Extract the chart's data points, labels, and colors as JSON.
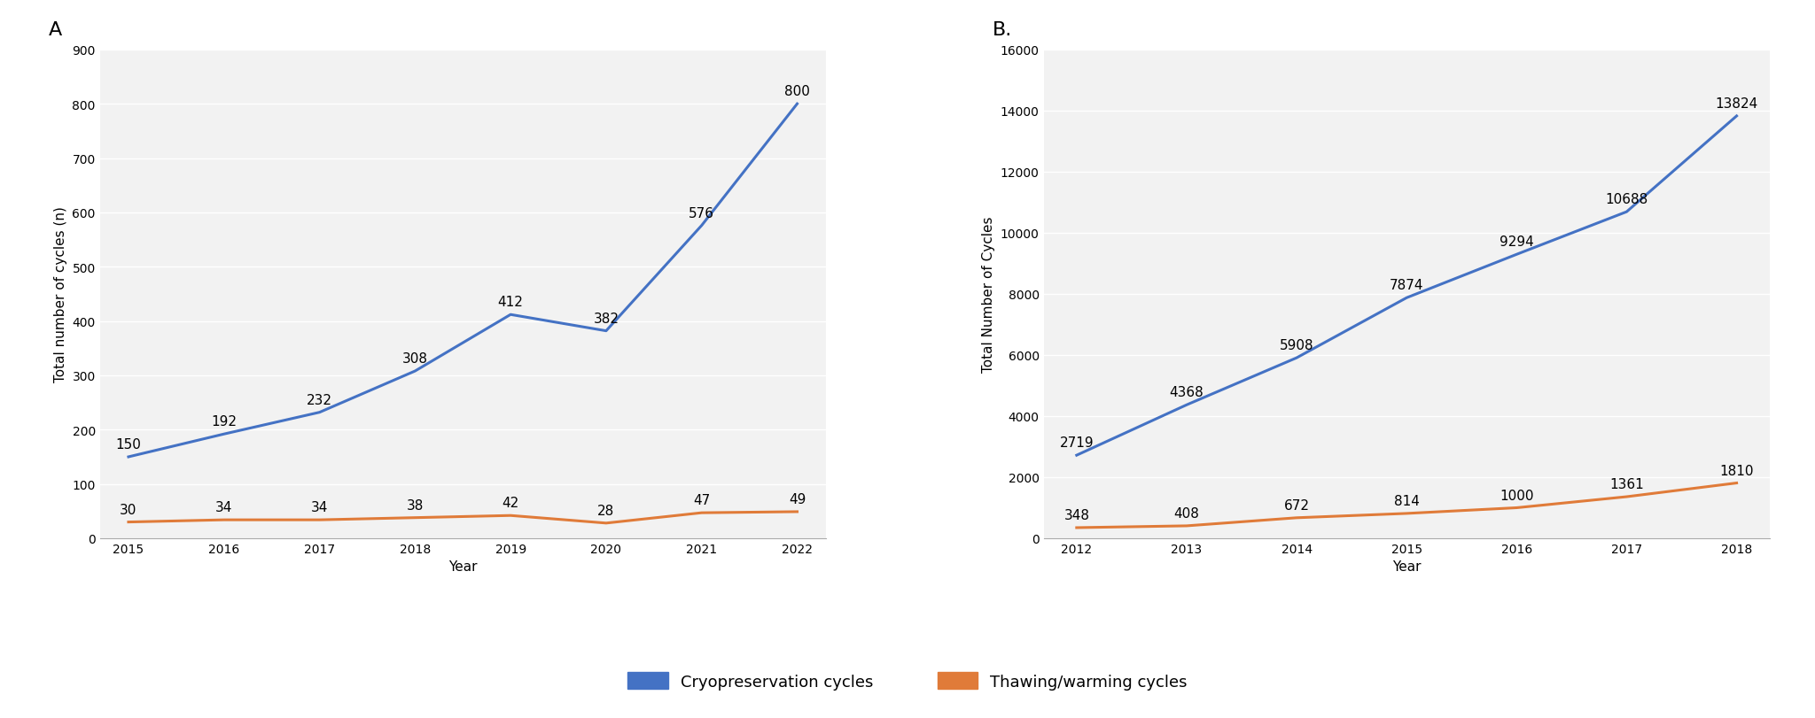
{
  "panel_A": {
    "label": "A",
    "years": [
      2015,
      2016,
      2017,
      2018,
      2019,
      2020,
      2021,
      2022
    ],
    "cryo_values": [
      150,
      192,
      232,
      308,
      412,
      382,
      576,
      800
    ],
    "thaw_values": [
      30,
      34,
      34,
      38,
      42,
      28,
      47,
      49
    ],
    "ylabel": "Total number of cycles (n)",
    "xlabel": "Year",
    "ylim": [
      0,
      900
    ],
    "yticks": [
      0,
      100,
      200,
      300,
      400,
      500,
      600,
      700,
      800,
      900
    ],
    "cryo_color": "#4472C4",
    "thaw_color": "#E07B39"
  },
  "panel_B": {
    "label": "B.",
    "years": [
      2012,
      2013,
      2014,
      2015,
      2016,
      2017,
      2018
    ],
    "cryo_values": [
      2719,
      4368,
      5908,
      7874,
      9294,
      10688,
      13824
    ],
    "thaw_values": [
      348,
      408,
      672,
      814,
      1000,
      1361,
      1810
    ],
    "ylabel": "Total Number of Cycles",
    "xlabel": "Year",
    "ylim": [
      0,
      16000
    ],
    "yticks": [
      0,
      2000,
      4000,
      6000,
      8000,
      10000,
      12000,
      14000,
      16000
    ],
    "cryo_color": "#4472C4",
    "thaw_color": "#E07B39"
  },
  "legend": {
    "cryo_label": "Cryopreservation cycles",
    "thaw_label": "Thawing/warming cycles"
  },
  "background_color": "#FFFFFF",
  "plot_bg_color": "#F2F2F2",
  "grid_color": "#FFFFFF",
  "line_width": 2.2,
  "annotation_fontsize": 11,
  "axis_label_fontsize": 11,
  "tick_fontsize": 10,
  "panel_label_fontsize": 16,
  "legend_fontsize": 13
}
